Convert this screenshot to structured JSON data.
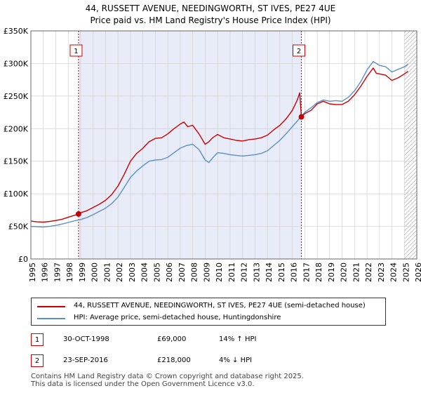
{
  "title_line1": "44, RUSSETT AVENUE, NEEDINGWORTH, ST IVES, PE27 4UE",
  "title_line2": "Price paid vs. HM Land Registry's House Price Index (HPI)",
  "colors": {
    "property": "#cc0000",
    "hpi": "#5b8fc9",
    "shade": "#e8ecf8",
    "grid": "#cfcfcf",
    "future_hatch": "#999999"
  },
  "chart_data": {
    "type": "line",
    "xlim": [
      1995,
      2026
    ],
    "ylim": [
      0,
      350000
    ],
    "x_ticks": [
      1995,
      1996,
      1997,
      1998,
      1999,
      2000,
      2001,
      2002,
      2003,
      2004,
      2005,
      2006,
      2007,
      2008,
      2009,
      2010,
      2011,
      2012,
      2013,
      2014,
      2015,
      2016,
      2017,
      2018,
      2019,
      2020,
      2021,
      2022,
      2023,
      2024,
      2025,
      2026
    ],
    "y_ticks": [
      0,
      50000,
      100000,
      150000,
      200000,
      250000,
      300000,
      350000
    ],
    "y_tick_labels": [
      "£0",
      "£50K",
      "£100K",
      "£150K",
      "£200K",
      "£250K",
      "£300K",
      "£350K"
    ],
    "shaded_range": [
      1998.83,
      2016.73
    ],
    "future_from": 2025.0,
    "series": [
      {
        "name": "44, RUSSETT AVENUE, NEEDINGWORTH, ST IVES, PE27 4UE (semi-detached house)",
        "color_key": "property",
        "x": [
          1995.0,
          1995.5,
          1996.0,
          1996.5,
          1997.0,
          1997.5,
          1998.0,
          1998.5,
          1998.83,
          1999.0,
          1999.5,
          2000.0,
          2000.5,
          2001.0,
          2001.5,
          2002.0,
          2002.5,
          2003.0,
          2003.5,
          2004.0,
          2004.5,
          2005.0,
          2005.5,
          2006.0,
          2006.5,
          2007.0,
          2007.3,
          2007.6,
          2008.0,
          2008.5,
          2009.0,
          2009.3,
          2009.6,
          2010.0,
          2010.5,
          2011.0,
          2011.5,
          2012.0,
          2012.5,
          2013.0,
          2013.5,
          2014.0,
          2014.5,
          2015.0,
          2015.5,
          2016.0,
          2016.4,
          2016.6,
          2016.73,
          2017.0,
          2017.5,
          2018.0,
          2018.5,
          2019.0,
          2019.5,
          2020.0,
          2020.5,
          2021.0,
          2021.5,
          2022.0,
          2022.5,
          2022.75,
          2023.0,
          2023.5,
          2024.0,
          2024.5,
          2025.0,
          2025.3
        ],
        "y": [
          58000,
          57000,
          56500,
          57500,
          59000,
          61000,
          64000,
          67000,
          69000,
          71000,
          74000,
          79000,
          84000,
          90000,
          99000,
          112000,
          130000,
          150000,
          162000,
          170000,
          180000,
          185000,
          186000,
          192000,
          200000,
          207000,
          210000,
          203000,
          205000,
          192000,
          176000,
          180000,
          186000,
          191000,
          186000,
          184000,
          182000,
          181000,
          183000,
          184000,
          186000,
          190000,
          198000,
          205000,
          215000,
          228000,
          244000,
          255000,
          218000,
          223000,
          228000,
          238000,
          242000,
          238000,
          237000,
          237000,
          242000,
          252000,
          265000,
          280000,
          293000,
          285000,
          284000,
          282000,
          274000,
          278000,
          284000,
          288000
        ]
      },
      {
        "name": "HPI: Average price, semi-detached house, Huntingdonshire",
        "color_key": "hpi",
        "x": [
          1995.0,
          1995.5,
          1996.0,
          1996.5,
          1997.0,
          1997.5,
          1998.0,
          1998.5,
          1999.0,
          1999.5,
          2000.0,
          2000.5,
          2001.0,
          2001.5,
          2002.0,
          2002.5,
          2003.0,
          2003.5,
          2004.0,
          2004.5,
          2005.0,
          2005.5,
          2006.0,
          2006.5,
          2007.0,
          2007.5,
          2008.0,
          2008.5,
          2009.0,
          2009.3,
          2009.6,
          2010.0,
          2010.5,
          2011.0,
          2011.5,
          2012.0,
          2012.5,
          2013.0,
          2013.5,
          2014.0,
          2014.5,
          2015.0,
          2015.5,
          2016.0,
          2016.5,
          2017.0,
          2017.5,
          2018.0,
          2018.5,
          2019.0,
          2019.5,
          2020.0,
          2020.5,
          2021.0,
          2021.5,
          2022.0,
          2022.5,
          2022.75,
          2023.0,
          2023.5,
          2024.0,
          2024.5,
          2025.0,
          2025.3
        ],
        "y": [
          50000,
          49500,
          49000,
          50000,
          51500,
          53500,
          56000,
          58500,
          60500,
          63500,
          68000,
          73000,
          78000,
          85000,
          95000,
          110000,
          125000,
          135000,
          143000,
          150000,
          152000,
          152500,
          156000,
          163000,
          170000,
          174000,
          176000,
          168000,
          152000,
          148000,
          155000,
          163000,
          162000,
          160000,
          159000,
          158000,
          159000,
          160000,
          162000,
          166000,
          174000,
          182000,
          192000,
          203000,
          214000,
          225000,
          232000,
          240000,
          244000,
          242000,
          243000,
          242000,
          248000,
          258000,
          272000,
          290000,
          303000,
          300000,
          297000,
          295000,
          287000,
          291000,
          295000,
          299000
        ]
      }
    ],
    "sales": [
      {
        "label": "1",
        "x": 1998.83,
        "y": 69000
      },
      {
        "label": "2",
        "x": 2016.73,
        "y": 218000
      }
    ]
  },
  "legend": {
    "property": "44, RUSSETT AVENUE, NEEDINGWORTH, ST IVES, PE27 4UE (semi-detached house)",
    "hpi": "HPI: Average price, semi-detached house, Huntingdonshire"
  },
  "annotations": [
    {
      "label": "1",
      "date": "30-OCT-1998",
      "price": "£69,000",
      "hpi": "14% ↑ HPI"
    },
    {
      "label": "2",
      "date": "23-SEP-2016",
      "price": "£218,000",
      "hpi": "4% ↓ HPI"
    }
  ],
  "footer_line1": "Contains HM Land Registry data © Crown copyright and database right 2025.",
  "footer_line2": "This data is licensed under the Open Government Licence v3.0."
}
